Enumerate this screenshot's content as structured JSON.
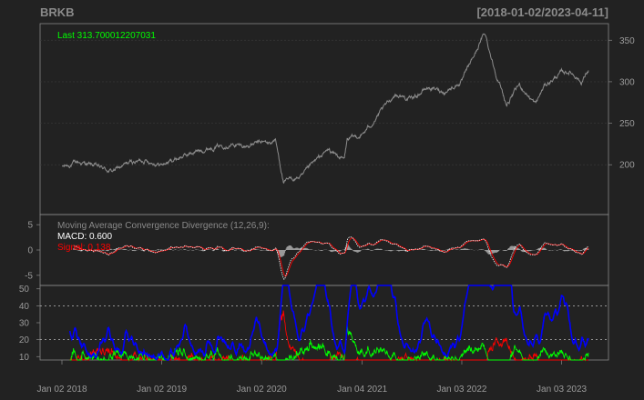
{
  "header": {
    "symbol": "BRKB",
    "date_range": "[2018-01-02/2023-04-11]"
  },
  "colors": {
    "background": "#222222",
    "frame": "#888888",
    "price": "#8c8c8c",
    "last_label": "#00ff00",
    "macd_line": "#ffffff",
    "signal_line": "#ff0000",
    "histogram": "#999999",
    "adx": "#0000ff",
    "di_plus": "#00ff00",
    "di_minus": "#ff0000",
    "reference": "#bbbbbb"
  },
  "chart_data": [
    {
      "type": "line",
      "panel": "price",
      "last_label": "Last 313.700012207031",
      "y_ticks": [
        "200",
        "250",
        "300",
        "350"
      ],
      "ylim": [
        140,
        370
      ],
      "x_dates": [
        "2018-01-02",
        "2018-03-01",
        "2018-05-01",
        "2018-07-02",
        "2018-09-04",
        "2018-11-01",
        "2019-01-02",
        "2019-03-01",
        "2019-05-01",
        "2019-07-01",
        "2019-09-03",
        "2019-11-01",
        "2020-01-02",
        "2020-02-03",
        "2020-02-21",
        "2020-03-23",
        "2020-04-15",
        "2020-06-01",
        "2020-07-01",
        "2020-09-01",
        "2020-10-30",
        "2020-11-10",
        "2021-01-04",
        "2021-03-01",
        "2021-05-03",
        "2021-07-01",
        "2021-09-01",
        "2021-11-01",
        "2022-01-03",
        "2022-03-01",
        "2022-03-28",
        "2022-05-02",
        "2022-06-16",
        "2022-08-01",
        "2022-09-30",
        "2022-11-01",
        "2023-01-03",
        "2023-02-01",
        "2023-03-01",
        "2023-03-15",
        "2023-04-11"
      ],
      "series": [
        {
          "values": [
            197,
            203,
            199,
            192,
            202,
            206,
            200,
            208,
            215,
            221,
            225,
            222,
            227,
            226,
            231,
            178,
            182,
            186,
            199,
            218,
            206,
            230,
            236,
            258,
            285,
            279,
            293,
            288,
            300,
            340,
            359,
            316,
            272,
            296,
            273,
            295,
            311,
            312,
            306,
            299,
            313.7
          ]
        }
      ]
    },
    {
      "type": "line",
      "panel": "macd",
      "title": "Moving Average Convergence Divergence (12,26,9):",
      "macd_label": "MACD: 0.600",
      "signal_label": "Signal: 0.138",
      "y_ticks": [
        "5",
        "0",
        "-5"
      ],
      "ylim": [
        -7,
        7
      ]
    },
    {
      "type": "line",
      "panel": "adx",
      "y_ticks": [
        "50",
        "40",
        "30",
        "20",
        "10"
      ],
      "reference_levels": [
        20,
        40
      ],
      "ylim": [
        8,
        52
      ]
    },
    {
      "type": "axis",
      "x_ticks": [
        "Jan 02 2018",
        "Jan 02 2019",
        "Jan 02 2020",
        "Jan 04 2021",
        "Jan 03 2022",
        "Jan 03 2023"
      ],
      "x_tick_dates": [
        "2018-01-02",
        "2019-01-02",
        "2020-01-02",
        "2021-01-04",
        "2022-01-03",
        "2023-01-03"
      ]
    }
  ]
}
